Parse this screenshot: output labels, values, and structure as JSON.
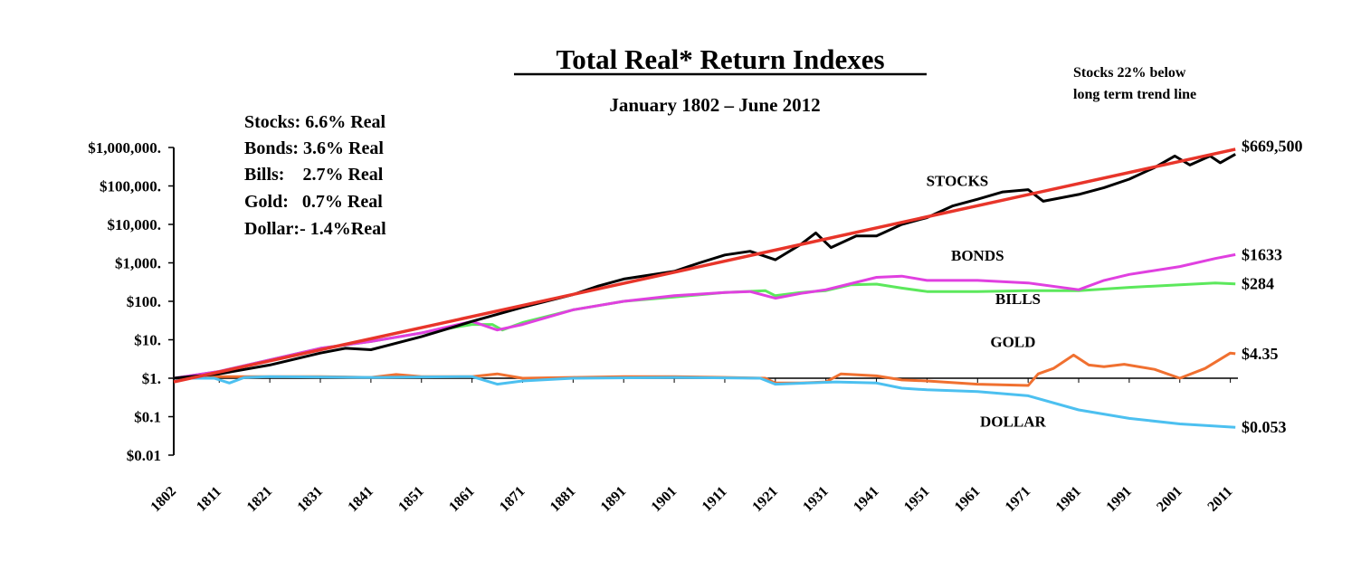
{
  "chart_data": {
    "type": "line",
    "scale": "log",
    "title": "Total Real* Return Indexes",
    "subtitle": "January 1802 – June 2012",
    "note_lines": [
      "Stocks 22% below",
      "long term trend line"
    ],
    "stats": [
      "Stocks: 6.6% Real",
      "Bonds: 3.6% Real",
      "Bills:    2.7% Real",
      "Gold:   0.7% Real",
      "Dollar:- 1.4%Real"
    ],
    "xlim": [
      1802,
      2012.5
    ],
    "ylim": [
      0.01,
      1000000
    ],
    "x_ticks": [
      1802,
      1811,
      1821,
      1831,
      1841,
      1851,
      1861,
      1871,
      1881,
      1891,
      1901,
      1911,
      1921,
      1931,
      1941,
      1951,
      1961,
      1971,
      1981,
      1991,
      2001,
      2011
    ],
    "x_tick_labels": [
      "1802",
      "1811",
      "1821",
      "1831",
      "1841",
      "1851",
      "1861",
      "1871",
      "1881",
      "1891",
      "1901",
      "1911",
      "1921",
      "1931",
      "1941",
      "1951",
      "1961",
      "1971",
      "1981",
      "1991",
      "2001",
      "2011"
    ],
    "y_ticks": [
      1000000,
      100000,
      10000,
      1000,
      100,
      10,
      1,
      0.1,
      0.01
    ],
    "y_tick_labels": [
      "$1,000,000.",
      "$100,000.",
      "$10,000.",
      "$1,000.",
      "$100.",
      "$10.",
      "$1.",
      "$0.1",
      "$0.01"
    ],
    "series": [
      {
        "name": "STOCKS",
        "color": "#000000",
        "label_year": 1957,
        "label_value": 100000,
        "end_label": "$669,500",
        "points": [
          [
            1802,
            1
          ],
          [
            1811,
            1.3
          ],
          [
            1821,
            2.2
          ],
          [
            1831,
            4.5
          ],
          [
            1836,
            6
          ],
          [
            1841,
            5.5
          ],
          [
            1851,
            12
          ],
          [
            1861,
            30
          ],
          [
            1871,
            70
          ],
          [
            1881,
            150
          ],
          [
            1886,
            250
          ],
          [
            1891,
            380
          ],
          [
            1901,
            600
          ],
          [
            1906,
            1000
          ],
          [
            1911,
            1600
          ],
          [
            1916,
            2000
          ],
          [
            1921,
            1200
          ],
          [
            1926,
            3000
          ],
          [
            1929,
            6000
          ],
          [
            1932,
            2500
          ],
          [
            1937,
            5000
          ],
          [
            1941,
            5000
          ],
          [
            1946,
            10000
          ],
          [
            1951,
            15000
          ],
          [
            1956,
            30000
          ],
          [
            1961,
            45000
          ],
          [
            1966,
            70000
          ],
          [
            1971,
            80000
          ],
          [
            1974,
            40000
          ],
          [
            1981,
            60000
          ],
          [
            1986,
            90000
          ],
          [
            1991,
            150000
          ],
          [
            1996,
            300000
          ],
          [
            2000,
            600000
          ],
          [
            2003,
            350000
          ],
          [
            2007,
            600000
          ],
          [
            2009,
            400000
          ],
          [
            2012,
            669500
          ]
        ]
      },
      {
        "name": "Trend",
        "color": "#e8352a",
        "label_year": null,
        "label_value": null,
        "end_label": "",
        "points": [
          [
            1802,
            0.8
          ],
          [
            2012,
            900000
          ]
        ]
      },
      {
        "name": "BONDS",
        "color": "#e040e0",
        "label_year": 1961,
        "label_value": 1150,
        "end_label": "$1633",
        "points": [
          [
            1802,
            1
          ],
          [
            1811,
            1.5
          ],
          [
            1821,
            3
          ],
          [
            1831,
            6
          ],
          [
            1841,
            9
          ],
          [
            1851,
            15
          ],
          [
            1861,
            30
          ],
          [
            1866,
            18
          ],
          [
            1871,
            25
          ],
          [
            1881,
            60
          ],
          [
            1891,
            100
          ],
          [
            1901,
            140
          ],
          [
            1911,
            170
          ],
          [
            1916,
            180
          ],
          [
            1921,
            120
          ],
          [
            1926,
            160
          ],
          [
            1931,
            200
          ],
          [
            1941,
            420
          ],
          [
            1946,
            450
          ],
          [
            1951,
            350
          ],
          [
            1961,
            350
          ],
          [
            1971,
            300
          ],
          [
            1981,
            200
          ],
          [
            1986,
            350
          ],
          [
            1991,
            500
          ],
          [
            2001,
            800
          ],
          [
            2008,
            1300
          ],
          [
            2012,
            1633
          ]
        ]
      },
      {
        "name": "BILLS",
        "color": "#5ce85c",
        "label_year": 1969,
        "label_value": 85,
        "end_label": "$284",
        "points": [
          [
            1802,
            1
          ],
          [
            1811,
            1.5
          ],
          [
            1821,
            3
          ],
          [
            1831,
            6
          ],
          [
            1841,
            9
          ],
          [
            1851,
            15
          ],
          [
            1861,
            25
          ],
          [
            1865,
            25
          ],
          [
            1867,
            18
          ],
          [
            1871,
            28
          ],
          [
            1881,
            60
          ],
          [
            1891,
            100
          ],
          [
            1901,
            130
          ],
          [
            1911,
            170
          ],
          [
            1919,
            190
          ],
          [
            1921,
            140
          ],
          [
            1926,
            170
          ],
          [
            1931,
            190
          ],
          [
            1936,
            270
          ],
          [
            1941,
            280
          ],
          [
            1946,
            220
          ],
          [
            1951,
            180
          ],
          [
            1961,
            180
          ],
          [
            1971,
            190
          ],
          [
            1981,
            190
          ],
          [
            1991,
            230
          ],
          [
            2001,
            270
          ],
          [
            2008,
            300
          ],
          [
            2012,
            284
          ]
        ]
      },
      {
        "name": "GOLD",
        "color": "#f07030",
        "label_year": 1968,
        "label_value": 6.5,
        "end_label": "$4.35",
        "points": [
          [
            1802,
            1
          ],
          [
            1811,
            1.1
          ],
          [
            1821,
            1.1
          ],
          [
            1831,
            1.1
          ],
          [
            1841,
            1.05
          ],
          [
            1846,
            1.25
          ],
          [
            1851,
            1.1
          ],
          [
            1861,
            1.1
          ],
          [
            1866,
            1.3
          ],
          [
            1871,
            1.0
          ],
          [
            1881,
            1.05
          ],
          [
            1891,
            1.1
          ],
          [
            1901,
            1.1
          ],
          [
            1911,
            1.05
          ],
          [
            1919,
            1.0
          ],
          [
            1921,
            0.75
          ],
          [
            1926,
            0.75
          ],
          [
            1931,
            0.8
          ],
          [
            1934,
            1.3
          ],
          [
            1941,
            1.15
          ],
          [
            1946,
            0.9
          ],
          [
            1951,
            0.85
          ],
          [
            1961,
            0.7
          ],
          [
            1971,
            0.65
          ],
          [
            1973,
            1.3
          ],
          [
            1976,
            1.8
          ],
          [
            1980,
            4
          ],
          [
            1983,
            2.2
          ],
          [
            1986,
            2
          ],
          [
            1990,
            2.3
          ],
          [
            1996,
            1.7
          ],
          [
            2001,
            1.0
          ],
          [
            2006,
            1.8
          ],
          [
            2011,
            4.5
          ],
          [
            2012,
            4.35
          ]
        ]
      },
      {
        "name": "DOLLAR",
        "color": "#4cc0f0",
        "label_year": 1968,
        "label_value": 0.055,
        "end_label": "$0.053",
        "points": [
          [
            1802,
            1
          ],
          [
            1810,
            1
          ],
          [
            1813,
            0.75
          ],
          [
            1816,
            1.05
          ],
          [
            1821,
            1.1
          ],
          [
            1841,
            1.05
          ],
          [
            1861,
            1.1
          ],
          [
            1866,
            0.7
          ],
          [
            1871,
            0.85
          ],
          [
            1881,
            1.0
          ],
          [
            1901,
            1.05
          ],
          [
            1918,
            1.0
          ],
          [
            1921,
            0.7
          ],
          [
            1933,
            0.8
          ],
          [
            1941,
            0.75
          ],
          [
            1946,
            0.55
          ],
          [
            1951,
            0.5
          ],
          [
            1961,
            0.45
          ],
          [
            1971,
            0.35
          ],
          [
            1981,
            0.15
          ],
          [
            1991,
            0.09
          ],
          [
            2001,
            0.065
          ],
          [
            2012,
            0.053
          ]
        ]
      }
    ]
  }
}
